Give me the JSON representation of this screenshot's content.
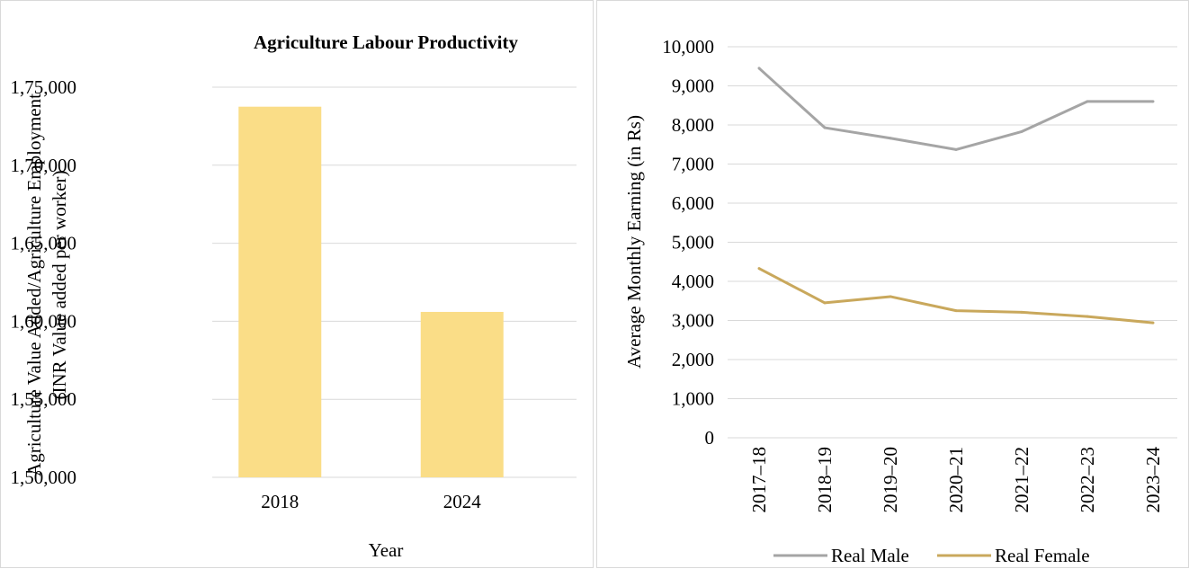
{
  "chart_data": [
    {
      "type": "bar",
      "title": "Agriculture Labour Productivity",
      "xlabel": "Year",
      "ylabel_lines": [
        "Agriculture Value Added/Agriculture Employment",
        "(INR Value added per worker)"
      ],
      "categories": [
        "2018",
        "2024"
      ],
      "values": [
        173750,
        160600
      ],
      "ylim": [
        150000,
        175000
      ],
      "yticks": [
        150000,
        155000,
        160000,
        165000,
        170000,
        175000
      ],
      "ytick_labels": [
        "1,50,000",
        "1,55,000",
        "1,60,000",
        "1,65,000",
        "1,70,000",
        "1,75,000"
      ],
      "grid": true,
      "bar_color": "#fadd87"
    },
    {
      "type": "line",
      "title": "",
      "xlabel": "",
      "ylabel": "Average Monthly Earning (in Rs)",
      "categories": [
        "2017–18",
        "2018–19",
        "2019–20",
        "2020–21",
        "2021–22",
        "2022–23",
        "2023–24"
      ],
      "series": [
        {
          "name": "Real Male",
          "color": "#a5a5a5",
          "values": [
            9450,
            7930,
            7660,
            7370,
            7830,
            8600,
            8600
          ]
        },
        {
          "name": "Real Female",
          "color": "#c9a85c",
          "values": [
            4330,
            3450,
            3610,
            3250,
            3210,
            3100,
            2940
          ]
        }
      ],
      "ylim": [
        0,
        10000
      ],
      "yticks": [
        0,
        1000,
        2000,
        3000,
        4000,
        5000,
        6000,
        7000,
        8000,
        9000,
        10000
      ],
      "ytick_labels": [
        "0",
        "1,000",
        "2,000",
        "3,000",
        "4,000",
        "5,000",
        "6,000",
        "7,000",
        "8,000",
        "9,000",
        "10,000"
      ],
      "grid": true,
      "legend_position": "bottom"
    }
  ]
}
